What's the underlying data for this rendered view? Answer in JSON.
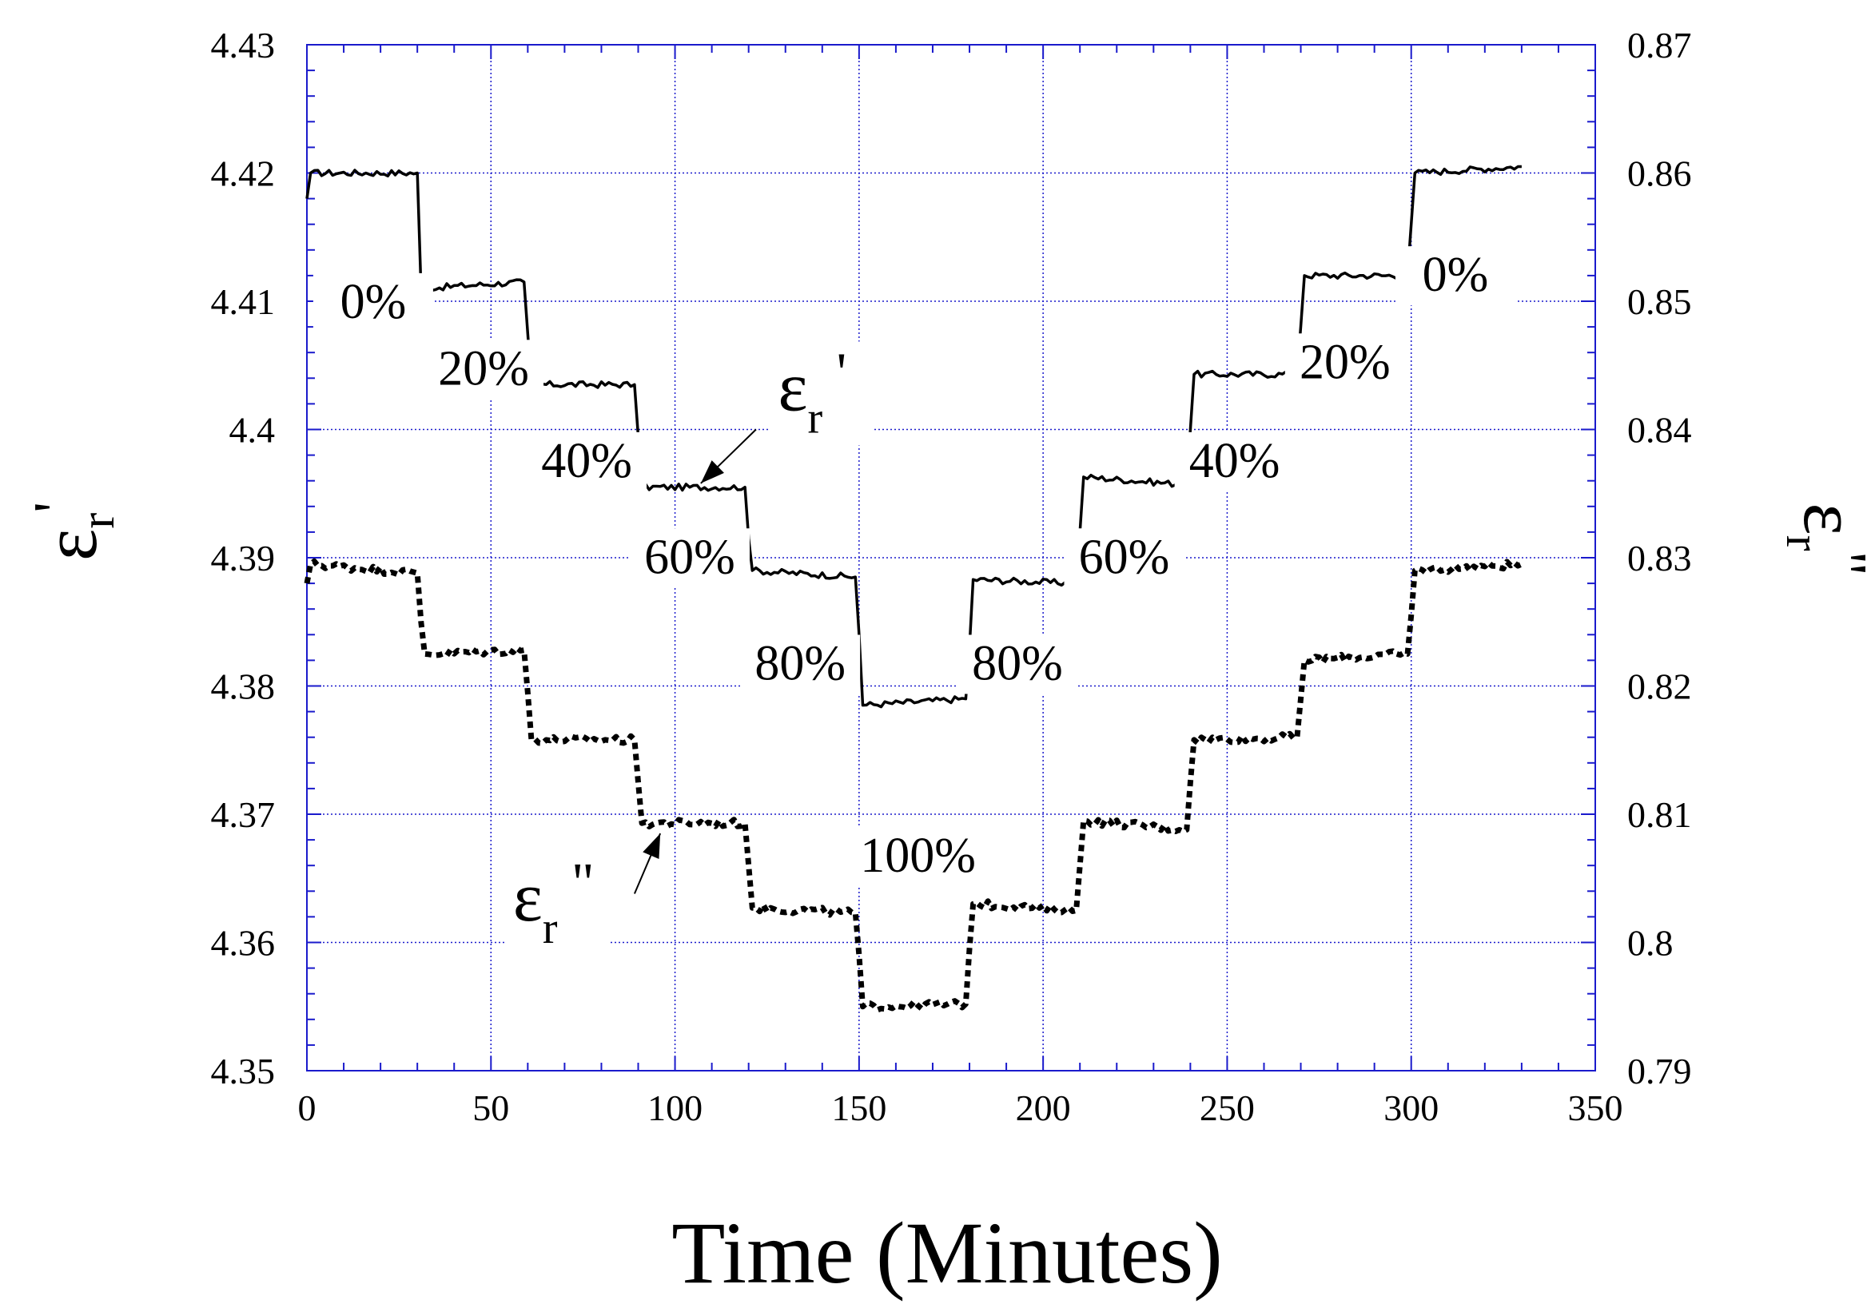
{
  "chart_data": {
    "type": "line",
    "xlabel": "Time (Minutes)",
    "xlim": [
      0,
      350
    ],
    "x_ticks": [
      "0",
      "50",
      "100",
      "150",
      "200",
      "250",
      "300",
      "350"
    ],
    "y_left": {
      "label_symbol": "ε",
      "label_sub": "r",
      "label_prime": "'",
      "lim": [
        4.35,
        4.43
      ],
      "ticks": [
        "4.35",
        "4.36",
        "4.37",
        "4.38",
        "4.39",
        "4.4",
        "4.41",
        "4.42",
        "4.43"
      ]
    },
    "y_right": {
      "label_symbol": "ε",
      "label_sub": "r",
      "label_prime": "\"",
      "lim": [
        0.79,
        0.87
      ],
      "ticks": [
        "0.79",
        "0.8",
        "0.81",
        "0.82",
        "0.83",
        "0.84",
        "0.85",
        "0.86",
        "0.87"
      ]
    },
    "grid": true,
    "series": [
      {
        "name": "εr'",
        "axis": "left",
        "style": "solid",
        "x": [
          0,
          1,
          30,
          31,
          59,
          60,
          61,
          89,
          90,
          91,
          119,
          120,
          121,
          149,
          150,
          151,
          179,
          180,
          181,
          209,
          210,
          211,
          239,
          240,
          241,
          269,
          270,
          271,
          299,
          300,
          301,
          330
        ],
        "values": [
          4.418,
          4.42,
          4.42,
          4.411,
          4.4115,
          4.4075,
          4.4035,
          4.4035,
          4.3995,
          4.3955,
          4.3955,
          4.3915,
          4.389,
          4.3885,
          4.384,
          4.3785,
          4.379,
          4.383,
          4.3883,
          4.388,
          4.392,
          4.3963,
          4.3957,
          4.4,
          4.4043,
          4.4043,
          4.408,
          4.412,
          4.412,
          4.416,
          4.42,
          4.4205
        ]
      },
      {
        "name": "εr\"",
        "axis": "right",
        "style": "dotted",
        "x": [
          0,
          1,
          30,
          31,
          32,
          59,
          60,
          61,
          89,
          90,
          91,
          119,
          120,
          121,
          149,
          150,
          151,
          179,
          180,
          181,
          209,
          210,
          211,
          239,
          240,
          241,
          269,
          270,
          271,
          299,
          300,
          301,
          330
        ],
        "values": [
          0.828,
          0.8295,
          0.8288,
          0.825,
          0.8225,
          0.8228,
          0.8195,
          0.8158,
          0.8158,
          0.8125,
          0.8093,
          0.8093,
          0.806,
          0.8027,
          0.8023,
          0.799,
          0.795,
          0.7952,
          0.7995,
          0.803,
          0.8025,
          0.806,
          0.8095,
          0.8088,
          0.8125,
          0.8158,
          0.816,
          0.819,
          0.822,
          0.8225,
          0.8255,
          0.829,
          0.8295
        ]
      }
    ],
    "annotations": {
      "left_series_labels": [
        {
          "text": "0%",
          "x": 18,
          "y": 4.4087
        },
        {
          "text": "20%",
          "x": 48,
          "y": 4.4035
        },
        {
          "text": "40%",
          "x": 76,
          "y": 4.3963
        },
        {
          "text": "60%",
          "x": 104,
          "y": 4.3888
        },
        {
          "text": "80%",
          "x": 134,
          "y": 4.3805
        },
        {
          "text": "100%",
          "x": 166,
          "y": 4.3655
        },
        {
          "text": "80%",
          "x": 193,
          "y": 4.3805
        },
        {
          "text": "60%",
          "x": 222,
          "y": 4.3888
        },
        {
          "text": "40%",
          "x": 252,
          "y": 4.3963
        },
        {
          "text": "20%",
          "x": 282,
          "y": 4.404
        },
        {
          "text": "0%",
          "x": 312,
          "y": 4.4108
        }
      ],
      "series_callouts": [
        {
          "symbol": "ε",
          "sub": "r",
          "prime": "'",
          "text_x": 128,
          "text_y": 4.4015,
          "arrow_from": [
            122,
            4.4
          ],
          "arrow_to": [
            107,
            4.3958
          ]
        },
        {
          "symbol": "ε",
          "sub": "r",
          "prime": "\"",
          "text_x": 56,
          "text_y": 4.3617,
          "arrow_from": [
            89,
            4.3638
          ],
          "arrow_to": [
            96,
            4.3685
          ]
        }
      ]
    }
  }
}
